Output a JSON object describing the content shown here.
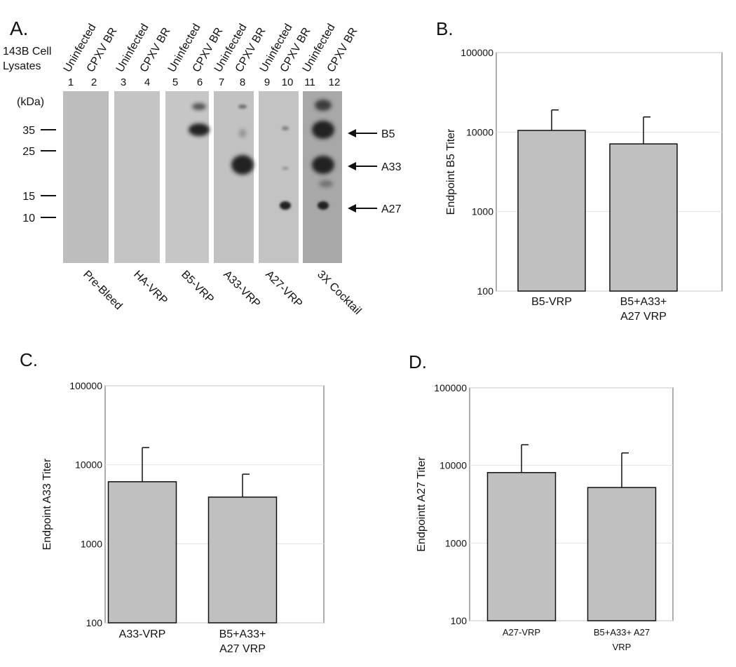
{
  "blot": {
    "panel_label": "A.",
    "sample_label": "143B Cell Lysates",
    "unit_label": "(kDa)",
    "lanes": [
      {
        "number": "1",
        "header": "Uninfected"
      },
      {
        "number": "2",
        "header": "CPXV BR"
      },
      {
        "number": "3",
        "header": "Uninfected"
      },
      {
        "number": "4",
        "header": "CPXV BR"
      },
      {
        "number": "5",
        "header": "Uninfected"
      },
      {
        "number": "6",
        "header": "CPXV BR"
      },
      {
        "number": "7",
        "header": "Uninfected"
      },
      {
        "number": "8",
        "header": "CPXV BR"
      },
      {
        "number": "9",
        "header": "Uninfected"
      },
      {
        "number": "10",
        "header": "CPXV BR"
      },
      {
        "number": "11",
        "header": "Uninfected"
      },
      {
        "number": "12",
        "header": "CPXV BR"
      }
    ],
    "markers": [
      "35",
      "25",
      "15",
      "10"
    ],
    "groups": [
      "Pre-Bleed",
      "HA-VRP",
      "B5-VRP",
      "A33-VRP",
      "A27-VRP",
      "3X Cocktail"
    ],
    "bands": [
      "B5",
      "A33",
      "A27"
    ]
  },
  "chart_data": [
    {
      "type": "bar",
      "panel_label": "B.",
      "ylabel": "Endpoint B5 Titer",
      "categories": [
        "B5-VRP",
        "B5+A33+ A27 VRP"
      ],
      "values": [
        10500,
        7100
      ],
      "errors": [
        8500,
        8400
      ],
      "color": "#c0c0c0",
      "ylog": true,
      "ylim": [
        100,
        100000
      ],
      "yticks": [
        100,
        1000,
        10000,
        100000
      ],
      "grid": true
    },
    {
      "type": "bar",
      "panel_label": "C.",
      "ylabel": "Endpoint A33 Titer",
      "categories": [
        "A33-VRP",
        "B5+A33+ A27 VRP"
      ],
      "values": [
        6100,
        3900
      ],
      "errors": [
        10400,
        3700
      ],
      "color": "#c0c0c0",
      "ylog": true,
      "ylim": [
        100,
        100000
      ],
      "yticks": [
        100,
        1000,
        10000,
        100000
      ],
      "grid": true
    },
    {
      "type": "bar",
      "panel_label": "D.",
      "ylabel": "Endpointt A27 Titer",
      "categories": [
        "A27-VRP",
        "B5+A33+ A27 VRP"
      ],
      "values": [
        8100,
        5200
      ],
      "errors": [
        10400,
        9300
      ],
      "color": "#c0c0c0",
      "ylog": true,
      "ylim": [
        100,
        100000
      ],
      "yticks": [
        100,
        1000,
        10000,
        100000
      ],
      "grid": true
    }
  ]
}
